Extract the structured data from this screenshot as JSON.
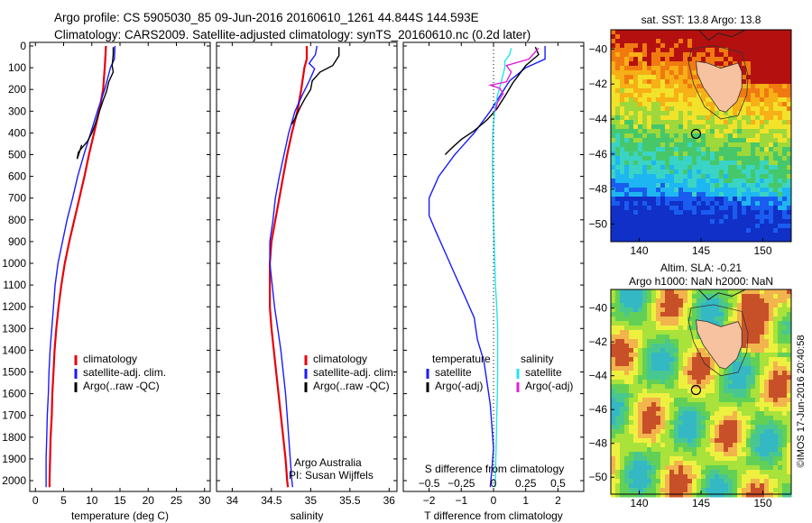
{
  "header": {
    "line1": "Argo profile: CS 5905030_85 09-Jun-2016 20160610_1261 44.844S 144.593E",
    "line2": "Climatology: CARS2009. Satellite-adjusted climatology: synTS_20160610.nc (0.2d later)"
  },
  "credit": "©IMOS 17-Jun-2016 20:40:58",
  "colors": {
    "clim": "#e8000b",
    "sat": "#1a1aff",
    "argo": "#000000",
    "sat_s": "#22e5f0",
    "argo_s": "#e01fd8"
  },
  "chart_data": [
    {
      "type": "line",
      "id": "temperature",
      "xlabel": "temperature (deg C)",
      "ylabel": "",
      "xlim": [
        -1,
        31
      ],
      "ylim": [
        2050,
        0
      ],
      "xticks": [
        0,
        5,
        10,
        15,
        20,
        25,
        30
      ],
      "yticks": [
        0,
        100,
        200,
        300,
        400,
        500,
        600,
        700,
        800,
        900,
        1000,
        1100,
        1200,
        1300,
        1400,
        1500,
        1600,
        1700,
        1800,
        1900,
        2000
      ],
      "legend": {
        "position": "lower-left",
        "entries": [
          "climatology",
          "satellite-adj. clim.",
          "Argo(..raw -QC)"
        ]
      },
      "series": [
        {
          "name": "climatology",
          "color": "clim",
          "points": [
            [
              12.5,
              0
            ],
            [
              12.4,
              50
            ],
            [
              12.3,
              100
            ],
            [
              12.0,
              200
            ],
            [
              11.3,
              300
            ],
            [
              10.4,
              400
            ],
            [
              9.5,
              500
            ],
            [
              8.7,
              600
            ],
            [
              7.8,
              700
            ],
            [
              6.9,
              800
            ],
            [
              6.0,
              900
            ],
            [
              5.2,
              1000
            ],
            [
              4.6,
              1100
            ],
            [
              4.1,
              1200
            ],
            [
              3.7,
              1300
            ],
            [
              3.4,
              1400
            ],
            [
              3.2,
              1500
            ],
            [
              3.0,
              1600
            ],
            [
              2.9,
              1700
            ],
            [
              2.7,
              1800
            ],
            [
              2.6,
              1900
            ],
            [
              2.5,
              2000
            ],
            [
              2.5,
              2030
            ]
          ]
        },
        {
          "name": "satellite-adj. clim.",
          "color": "sat",
          "points": [
            [
              14.1,
              0
            ],
            [
              14.0,
              60
            ],
            [
              13.3,
              100
            ],
            [
              12.3,
              200
            ],
            [
              11.0,
              300
            ],
            [
              9.8,
              400
            ],
            [
              8.6,
              500
            ],
            [
              7.5,
              600
            ],
            [
              6.6,
              700
            ],
            [
              5.6,
              800
            ],
            [
              4.8,
              900
            ],
            [
              4.0,
              1000
            ],
            [
              3.5,
              1100
            ],
            [
              3.2,
              1200
            ],
            [
              2.9,
              1300
            ],
            [
              2.6,
              1400
            ],
            [
              2.4,
              1500
            ],
            [
              2.3,
              1600
            ],
            [
              2.1,
              1700
            ],
            [
              2.0,
              1800
            ],
            [
              1.9,
              1900
            ],
            [
              1.9,
              2000
            ],
            [
              1.9,
              2030
            ]
          ]
        },
        {
          "name": "Argo(..raw -QC)",
          "color": "argo",
          "points": [
            [
              13.8,
              5
            ],
            [
              13.8,
              40
            ],
            [
              13.6,
              90
            ],
            [
              13.8,
              120
            ],
            [
              13.0,
              165
            ],
            [
              12.6,
              210
            ],
            [
              12.0,
              250
            ],
            [
              11.5,
              290
            ],
            [
              11.1,
              320
            ],
            [
              10.6,
              360
            ],
            [
              10.0,
              400
            ],
            [
              9.2,
              440
            ],
            [
              8.2,
              470
            ],
            [
              7.6,
              490
            ],
            [
              7.4,
              520
            ],
            [
              7.6,
              505
            ],
            [
              8.2,
              455
            ]
          ]
        }
      ]
    },
    {
      "type": "line",
      "id": "salinity",
      "xlabel": "salinity",
      "ylabel": "",
      "xlim": [
        33.8,
        36.1
      ],
      "ylim": [
        2050,
        0
      ],
      "xticks": [
        34,
        34.5,
        35,
        35.5,
        36
      ],
      "legend": {
        "position": "lower-right",
        "entries": [
          "climatology",
          "satellite-adj. clim.",
          "Argo(..raw -QC)"
        ]
      },
      "annotations": [
        "Argo Australia",
        "PI: Susan Wijffels"
      ],
      "series": [
        {
          "name": "climatology",
          "color": "clim",
          "points": [
            [
              34.95,
              0
            ],
            [
              34.95,
              60
            ],
            [
              34.92,
              100
            ],
            [
              34.88,
              200
            ],
            [
              34.83,
              300
            ],
            [
              34.76,
              400
            ],
            [
              34.7,
              500
            ],
            [
              34.65,
              600
            ],
            [
              34.6,
              700
            ],
            [
              34.55,
              800
            ],
            [
              34.5,
              900
            ],
            [
              34.48,
              1000
            ],
            [
              34.48,
              1100
            ],
            [
              34.48,
              1200
            ],
            [
              34.5,
              1300
            ],
            [
              34.53,
              1400
            ],
            [
              34.56,
              1500
            ],
            [
              34.59,
              1600
            ],
            [
              34.62,
              1700
            ],
            [
              34.65,
              1800
            ],
            [
              34.68,
              1900
            ],
            [
              34.7,
              2000
            ],
            [
              34.71,
              2030
            ]
          ]
        },
        {
          "name": "satellite-adj. clim.",
          "color": "sat",
          "points": [
            [
              35.08,
              0
            ],
            [
              35.06,
              40
            ],
            [
              34.98,
              80
            ],
            [
              35.05,
              105
            ],
            [
              35.02,
              130
            ],
            [
              34.97,
              170
            ],
            [
              34.9,
              220
            ],
            [
              34.8,
              300
            ],
            [
              34.72,
              400
            ],
            [
              34.66,
              500
            ],
            [
              34.6,
              600
            ],
            [
              34.55,
              700
            ],
            [
              34.52,
              800
            ],
            [
              34.48,
              900
            ],
            [
              34.48,
              1000
            ],
            [
              34.51,
              1100
            ],
            [
              34.54,
              1200
            ],
            [
              34.58,
              1300
            ],
            [
              34.62,
              1400
            ],
            [
              34.65,
              1500
            ],
            [
              34.68,
              1600
            ],
            [
              34.7,
              1700
            ],
            [
              34.72,
              1800
            ],
            [
              34.74,
              1900
            ],
            [
              34.76,
              2000
            ],
            [
              34.77,
              2030
            ]
          ]
        },
        {
          "name": "Argo(..raw -QC)",
          "color": "argo",
          "points": [
            [
              35.36,
              5
            ],
            [
              35.36,
              45
            ],
            [
              35.28,
              90
            ],
            [
              35.12,
              120
            ],
            [
              35.02,
              160
            ],
            [
              35.0,
              200
            ],
            [
              34.93,
              240
            ],
            [
              34.87,
              280
            ],
            [
              34.82,
              320
            ],
            [
              34.76,
              360
            ]
          ]
        }
      ]
    },
    {
      "type": "line",
      "id": "difference",
      "xlabel": "T difference from climatology",
      "xlabel2": "S difference from climatology",
      "xlim": [
        -2.8,
        2.8
      ],
      "ylim": [
        2050,
        0
      ],
      "xticks": [
        -2,
        -1,
        0,
        1,
        2
      ],
      "xticks2": [
        -0.5,
        -0.25,
        0,
        0.25,
        0.5
      ],
      "legend": {
        "position": "lower-center",
        "entries": [
          "temperature",
          "satellite",
          "Argo(-adj)",
          "salinity",
          "satellite",
          "Argo(-adj)"
        ]
      },
      "series": [
        {
          "name": "satellite",
          "group": "temperature",
          "color": "sat",
          "points": [
            [
              1.6,
              0
            ],
            [
              1.6,
              60
            ],
            [
              1.0,
              100
            ],
            [
              0.5,
              160
            ],
            [
              0.2,
              230
            ],
            [
              -0.1,
              300
            ],
            [
              -0.6,
              400
            ],
            [
              -1.2,
              500
            ],
            [
              -1.7,
              600
            ],
            [
              -2.0,
              700
            ],
            [
              -2.0,
              780
            ],
            [
              -1.8,
              850
            ],
            [
              -1.5,
              950
            ],
            [
              -1.2,
              1050
            ],
            [
              -0.9,
              1150
            ],
            [
              -0.6,
              1250
            ],
            [
              -0.5,
              1350
            ],
            [
              -0.3,
              1450
            ],
            [
              -0.2,
              1550
            ],
            [
              -0.1,
              1650
            ],
            [
              -0.05,
              1750
            ],
            [
              0.0,
              1850
            ],
            [
              -0.05,
              1950
            ],
            [
              -0.1,
              2030
            ]
          ]
        },
        {
          "name": "Argo(-adj)",
          "group": "temperature",
          "color": "argo",
          "points": [
            [
              1.3,
              5
            ],
            [
              1.4,
              40
            ],
            [
              1.0,
              90
            ],
            [
              0.8,
              130
            ],
            [
              0.6,
              170
            ],
            [
              0.4,
              220
            ],
            [
              0.1,
              290
            ],
            [
              -0.2,
              340
            ],
            [
              -0.6,
              390
            ],
            [
              -1.0,
              430
            ],
            [
              -1.3,
              470
            ],
            [
              -1.5,
              500
            ]
          ]
        },
        {
          "name": "satellite",
          "group": "salinity",
          "color": "sat_s",
          "points": [
            [
              0.55,
              10
            ],
            [
              0.5,
              40
            ],
            [
              0.35,
              70
            ],
            [
              0.35,
              100
            ],
            [
              0.25,
              160
            ],
            [
              0.12,
              230
            ],
            [
              0.03,
              300
            ],
            [
              -0.02,
              400
            ],
            [
              -0.03,
              500
            ],
            [
              -0.03,
              550
            ],
            [
              -0.02,
              700
            ],
            [
              0.0,
              800
            ],
            [
              0.02,
              900
            ],
            [
              0.04,
              1000
            ],
            [
              0.06,
              1100
            ],
            [
              0.1,
              1200
            ],
            [
              0.13,
              1300
            ],
            [
              0.13,
              1400
            ],
            [
              0.13,
              1500
            ],
            [
              0.12,
              1600
            ],
            [
              0.1,
              1700
            ],
            [
              0.09,
              1800
            ],
            [
              0.07,
              1900
            ],
            [
              0.06,
              2000
            ],
            [
              0.06,
              2030
            ]
          ]
        },
        {
          "name": "Argo(-adj)",
          "group": "salinity",
          "color": "argo_s",
          "points": [
            [
              1.4,
              10
            ],
            [
              1.1,
              60
            ],
            [
              0.4,
              90
            ],
            [
              0.55,
              120
            ],
            [
              0.4,
              165
            ],
            [
              -0.1,
              180
            ],
            [
              0.2,
              195
            ],
            [
              0.3,
              220
            ],
            [
              0.12,
              260
            ],
            [
              0.05,
              300
            ]
          ]
        }
      ]
    },
    {
      "type": "heatmap",
      "id": "sst-map",
      "title": "sat. SST: 13.8 Argo: 13.8",
      "xticks": [
        140,
        145,
        150
      ],
      "yticks": [
        -40,
        -42,
        -44,
        -46,
        -48,
        -50
      ],
      "xlim": [
        137.7,
        152.3
      ],
      "ylim": [
        -51,
        -38.9
      ],
      "argo_position": [
        144.593,
        -44.844
      ]
    },
    {
      "type": "heatmap",
      "id": "sla-map",
      "title_line1": "Altim. SLA: -0.21",
      "title_line2": "Argo h1000: NaN h2000: NaN",
      "xticks": [
        140,
        145,
        150
      ],
      "yticks": [
        -40,
        -42,
        -44,
        -46,
        -48,
        -50
      ],
      "xlim": [
        137.7,
        152.3
      ],
      "ylim": [
        -51,
        -38.9
      ],
      "argo_position": [
        144.593,
        -44.844
      ]
    }
  ]
}
